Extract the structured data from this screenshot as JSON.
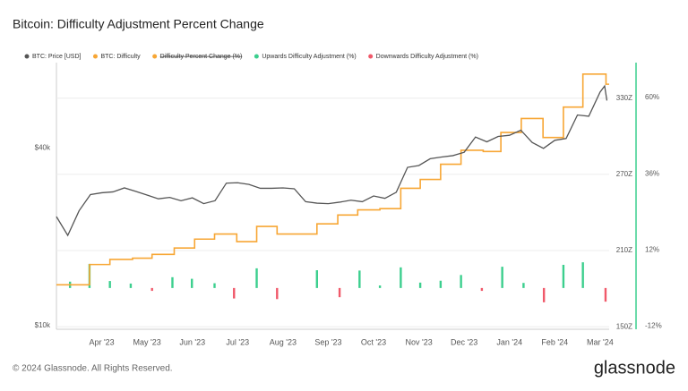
{
  "chart_data": {
    "type": "combo",
    "title": "Bitcoin: Difficulty Adjustment Percent Change",
    "footer": "© 2024 Glassnode. All Rights Reserved.",
    "brand": "glassnode",
    "xlim": [
      0,
      12.2
    ],
    "xticks": [
      {
        "value": 1,
        "label": "Apr '23"
      },
      {
        "value": 2,
        "label": "May '23"
      },
      {
        "value": 3,
        "label": "Jun '23"
      },
      {
        "value": 4,
        "label": "Jul '23"
      },
      {
        "value": 5,
        "label": "Aug '23"
      },
      {
        "value": 6,
        "label": "Sep '23"
      },
      {
        "value": 7,
        "label": "Oct '23"
      },
      {
        "value": 8,
        "label": "Nov '23"
      },
      {
        "value": 9,
        "label": "Dec '23"
      },
      {
        "value": 10,
        "label": "Jan '24"
      },
      {
        "value": 11,
        "label": "Feb '24"
      },
      {
        "value": 12,
        "label": "Mar '24"
      }
    ],
    "ylim": [
      9700,
      78000
    ],
    "log_scale": true,
    "yticks": [
      {
        "value": 10000,
        "label": "$10k"
      },
      {
        "value": 40000,
        "label": "$40k"
      }
    ],
    "y2lim": [
      148,
      358
    ],
    "y2ticks": [
      {
        "value": 150,
        "label": "150Z"
      },
      {
        "value": 210,
        "label": "210Z"
      },
      {
        "value": 270,
        "label": "270Z"
      },
      {
        "value": 330,
        "label": "330Z"
      }
    ],
    "y3lim": [
      -13,
      71
    ],
    "y3ticks": [
      {
        "value": -12,
        "label": "-12%"
      },
      {
        "value": 12,
        "label": "12%"
      },
      {
        "value": 36,
        "label": "36%"
      },
      {
        "value": 60,
        "label": "60%"
      }
    ],
    "grid": true,
    "series": [
      {
        "name": "BTC: Price [USD]",
        "color": "#555555",
        "kind": "line",
        "axis": "y",
        "x": [
          0,
          0.25,
          0.5,
          0.75,
          1.0,
          1.25,
          1.5,
          1.75,
          2.0,
          2.25,
          2.5,
          2.75,
          3.0,
          3.25,
          3.5,
          3.75,
          4.0,
          4.25,
          4.5,
          4.75,
          5.0,
          5.25,
          5.5,
          5.75,
          6.0,
          6.25,
          6.5,
          6.75,
          7.0,
          7.25,
          7.5,
          7.75,
          8.0,
          8.25,
          8.5,
          8.75,
          9.0,
          9.25,
          9.5,
          9.75,
          10.0,
          10.25,
          10.5,
          10.75,
          11.0,
          11.25,
          11.5,
          11.75,
          12.0,
          12.1,
          12.15
        ],
        "values": [
          23400,
          20200,
          24500,
          27800,
          28200,
          28400,
          29300,
          28500,
          27700,
          26900,
          27200,
          26500,
          27100,
          25900,
          26500,
          30400,
          30500,
          30100,
          29200,
          29200,
          29300,
          29100,
          26300,
          26000,
          25900,
          26200,
          26600,
          26300,
          27500,
          27000,
          28300,
          34400,
          34900,
          36800,
          37300,
          37700,
          38700,
          43600,
          42000,
          43800,
          44200,
          46000,
          41800,
          39900,
          42500,
          43100,
          51800,
          51300,
          62000,
          65000,
          58000
        ]
      },
      {
        "name": "BTC: Difficulty",
        "color": "#f7a634",
        "kind": "step",
        "axis": "y2",
        "x": [
          0,
          0.73,
          1.18,
          1.68,
          2.11,
          2.6,
          3.05,
          3.49,
          3.98,
          4.42,
          4.87,
          5.75,
          6.21,
          6.65,
          7.14,
          7.6,
          8.03,
          8.48,
          8.93,
          9.42,
          9.81,
          10.26,
          10.74,
          11.19,
          11.62,
          12.13
        ],
        "values": [
          183,
          199,
          203,
          204,
          207,
          212,
          219,
          223,
          217,
          229,
          223,
          231,
          238,
          242,
          243,
          259,
          266,
          278,
          289,
          288,
          303,
          314,
          299,
          323,
          349,
          341
        ]
      },
      {
        "name": "Difficulty Percent Change (%)",
        "color": "#f7a634",
        "kind": "hidden"
      },
      {
        "name": "Upwards Difficulty Adjustment (%)",
        "color": "#3ccf8e",
        "kind": "bar",
        "axis": "y3",
        "x": [
          0.3,
          0.73,
          1.18,
          1.64,
          2.56,
          2.99,
          3.49,
          4.42,
          5.75,
          6.69,
          7.14,
          7.6,
          8.03,
          8.48,
          8.93,
          9.84,
          10.31,
          11.19,
          11.62
        ],
        "values": [
          2.0,
          7.6,
          2.2,
          1.4,
          3.4,
          2.9,
          1.5,
          6.2,
          5.6,
          5.5,
          0.8,
          6.5,
          1.7,
          2.3,
          4.1,
          6.7,
          1.6,
          7.3,
          8.1
        ]
      },
      {
        "name": "Downwards Difficulty Adjustment (%)",
        "color": "#f0596a",
        "kind": "bar",
        "axis": "y3",
        "x": [
          2.11,
          3.92,
          4.87,
          6.25,
          9.39,
          10.76,
          12.12
        ],
        "values": [
          -0.9,
          -3.3,
          -3.5,
          -2.9,
          -0.9,
          -4.5,
          -4.3
        ]
      }
    ]
  }
}
